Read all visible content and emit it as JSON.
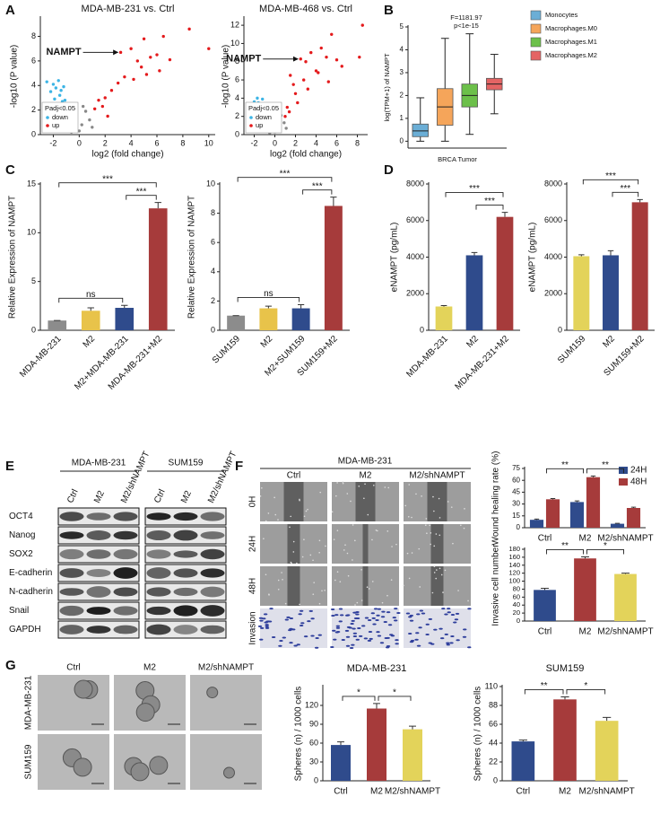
{
  "panel_labels": [
    "A",
    "B",
    "C",
    "D",
    "E",
    "F",
    "G"
  ],
  "chart_data": [
    {
      "type": "scatter",
      "title": "MDA-MB-231 vs. Ctrl",
      "xlabel": "log2 (fold change)",
      "ylabel": "-log10 (P value)",
      "xlim": [
        -3,
        10.5
      ],
      "xticks": [
        -2,
        0,
        2,
        4,
        6,
        8,
        10
      ],
      "ylim": [
        0,
        9.5
      ],
      "yticks": [
        0,
        2,
        4,
        6,
        8
      ],
      "legend_title": "Padj<0.05",
      "series": [
        {
          "name": "down",
          "color": "#3cb4e5",
          "x": [
            -2.2,
            -2,
            -1.8,
            -1.6,
            -1.4,
            -1.2,
            -1.9,
            -1.5,
            -1.1,
            -2.5,
            -1.7,
            -1.3
          ],
          "values": [
            3.5,
            4.1,
            3.8,
            4.4,
            3.6,
            3.9,
            2.9,
            3.2,
            2.8,
            4.3,
            2.5,
            2.7
          ]
        },
        {
          "name": "up",
          "color": "#e41a1c",
          "x": [
            3.2,
            4,
            4.5,
            5,
            5.5,
            6,
            6.5,
            7,
            8.5,
            10,
            3,
            3.5,
            4.2,
            2.5,
            2,
            1.5,
            1.8,
            1.2,
            2.2,
            5.2,
            6.2,
            4.8
          ],
          "values": [
            6.7,
            7,
            6,
            7.8,
            6.3,
            6.5,
            8,
            6.1,
            8.6,
            7,
            4.2,
            4.7,
            4.5,
            3.6,
            3,
            2.8,
            2.3,
            2.1,
            1.5,
            4.9,
            5.2,
            5.5
          ]
        },
        {
          "color": "#888888",
          "x": [
            -0.8,
            -0.5,
            -0.3,
            0,
            0.2,
            0.5,
            0.8,
            -0.6,
            0.3,
            1
          ],
          "values": [
            0.5,
            1,
            1.5,
            0.3,
            0.8,
            1.9,
            1.2,
            0.2,
            2.3,
            0.6
          ]
        }
      ],
      "annotations": [
        {
          "text": "NAMPT",
          "x": 3.2,
          "y": 6.7
        }
      ]
    },
    {
      "type": "scatter",
      "title": "MDA-MB-468 vs. Ctrl",
      "xlabel": "log2 (fold change)",
      "ylabel": "-log10 (P value)",
      "xlim": [
        -3,
        9
      ],
      "xticks": [
        -2,
        0,
        2,
        4,
        6,
        8
      ],
      "ylim": [
        0,
        12.8
      ],
      "yticks": [
        0,
        2,
        4,
        6,
        8,
        10,
        12
      ],
      "legend_title": "Padj<0.05",
      "series": [
        {
          "name": "down",
          "color": "#3cb4e5",
          "x": [
            -2.3,
            -2,
            -1.8,
            -1.6,
            -1.4,
            -1.2,
            -1.9,
            -1.5,
            -1.1,
            -1.7
          ],
          "values": [
            3.2,
            3.6,
            3,
            3.5,
            2.8,
            3.9,
            2.5,
            2.2,
            2.7,
            4
          ]
        },
        {
          "name": "up",
          "color": "#e41a1c",
          "x": [
            2.5,
            3,
            3.5,
            4,
            4.5,
            5,
            5.5,
            6,
            6.5,
            8.5,
            8.2,
            1.5,
            1.8,
            2,
            1.2,
            2.8,
            3.2,
            4.2,
            5.2,
            1,
            1.4,
            2.2
          ],
          "values": [
            8.3,
            8,
            9,
            7,
            9.5,
            8.5,
            11,
            8.2,
            7.5,
            12,
            8.5,
            6.5,
            5.5,
            4.5,
            3,
            6,
            5,
            6.8,
            5.8,
            2,
            2.5,
            3.5
          ]
        },
        {
          "color": "#888888",
          "x": [
            -0.7,
            -0.4,
            -0.2,
            0,
            0.3,
            0.6,
            0.9,
            -0.5,
            0.4,
            1.1
          ],
          "values": [
            0.6,
            1.1,
            1.6,
            0.3,
            0.9,
            2.1,
            1.3,
            0.2,
            2.6,
            0.7
          ]
        }
      ],
      "annotations": [
        {
          "text": "NAMPT",
          "x": 2.5,
          "y": 8.3
        }
      ]
    },
    {
      "type": "box",
      "ylabel": "log(TPM+1) of NAMPT",
      "xlabel": "BRCA Tumor",
      "annotations": [
        "F=1181.97",
        "p<1e-15"
      ],
      "ylim": [
        -0.3,
        5
      ],
      "yticks": [
        0,
        1,
        2,
        3,
        4,
        5
      ],
      "series": [
        {
          "name": "Monocytes",
          "color": "#6baed6",
          "whisker_low": 0,
          "q1": 0.2,
          "median": 0.45,
          "q3": 0.75,
          "whisker_high": 1.9
        },
        {
          "name": "Macrophages.M0",
          "color": "#f5a55a",
          "whisker_low": 0,
          "q1": 0.7,
          "median": 1.5,
          "q3": 2.3,
          "whisker_high": 4.5
        },
        {
          "name": "Macrophages.M1",
          "color": "#6cc04a",
          "whisker_low": 0.3,
          "q1": 1.5,
          "median": 2.0,
          "q3": 2.5,
          "whisker_high": 4.7
        },
        {
          "name": "Macrophages.M2",
          "color": "#e46464",
          "whisker_low": 1.2,
          "q1": 2.25,
          "median": 2.5,
          "q3": 2.75,
          "whisker_high": 3.8
        }
      ]
    },
    {
      "type": "bar",
      "ylabel": "Relative Expression of NAMPT",
      "categories": [
        "MDA-MB-231",
        "M2",
        "M2+MDA-MB-231",
        "MDA-MB-231+M2"
      ],
      "values": [
        1,
        2.0,
        2.3,
        12.5
      ],
      "errors": [
        0,
        0.3,
        0.25,
        0.6
      ],
      "colors": [
        "#8c8c8c",
        "#e8c34a",
        "#2f4b8c",
        "#a63b3b"
      ],
      "ylim": [
        0,
        15
      ],
      "yticks": [
        0,
        5,
        10,
        15
      ],
      "brackets": [
        {
          "from": 0,
          "to": 2,
          "label": "ns"
        },
        {
          "from": 2,
          "to": 3,
          "label": "***"
        },
        {
          "from": 0,
          "to": 3,
          "label": "***"
        }
      ]
    },
    {
      "type": "bar",
      "ylabel": "Relative Expression of NAMPT",
      "categories": [
        "SUM159",
        "M2",
        "M2+SUM159",
        "SUM159+M2"
      ],
      "values": [
        1,
        1.5,
        1.5,
        8.5
      ],
      "errors": [
        0,
        0.15,
        0.25,
        0.6
      ],
      "colors": [
        "#8c8c8c",
        "#e8c34a",
        "#2f4b8c",
        "#a63b3b"
      ],
      "ylim": [
        0,
        10
      ],
      "yticks": [
        0,
        2,
        4,
        6,
        8,
        10
      ],
      "brackets": [
        {
          "from": 0,
          "to": 2,
          "label": "ns"
        },
        {
          "from": 2,
          "to": 3,
          "label": "***"
        },
        {
          "from": 0,
          "to": 3,
          "label": "***"
        }
      ]
    },
    {
      "type": "bar",
      "ylabel": "eNAMPT (pg/mL)",
      "categories": [
        "MDA-MB-231",
        "M2",
        "MDA-MB-231+M2"
      ],
      "values": [
        1300,
        4100,
        6200
      ],
      "errors": [
        50,
        150,
        250
      ],
      "colors": [
        "#e3d35a",
        "#2f4b8c",
        "#a63b3b"
      ],
      "ylim": [
        0,
        8000
      ],
      "yticks": [
        0,
        2000,
        4000,
        6000,
        8000
      ],
      "brackets": [
        {
          "from": 1,
          "to": 2,
          "label": "***"
        },
        {
          "from": 0,
          "to": 2,
          "label": "***"
        }
      ]
    },
    {
      "type": "bar",
      "ylabel": "eNAMPT (pg/mL)",
      "categories": [
        "SUM159",
        "M2",
        "SUM159+M2"
      ],
      "values": [
        4050,
        4100,
        7000
      ],
      "errors": [
        80,
        250,
        150
      ],
      "colors": [
        "#e3d35a",
        "#2f4b8c",
        "#a63b3b"
      ],
      "ylim": [
        0,
        8000
      ],
      "yticks": [
        0,
        2000,
        4000,
        6000,
        8000
      ],
      "brackets": [
        {
          "from": 1,
          "to": 2,
          "label": "***"
        },
        {
          "from": 0,
          "to": 2,
          "label": "***"
        }
      ]
    },
    {
      "type": "grouped_bar",
      "ylabel": "Wound healing rate (%)",
      "categories": [
        "Ctrl",
        "M2",
        "M2/shNAMPT"
      ],
      "series": [
        {
          "name": "24H",
          "color": "#2f4b8c",
          "values": [
            10,
            32.5,
            5
          ],
          "errors": [
            1,
            1.5,
            0.6
          ]
        },
        {
          "name": "48H",
          "color": "#a63b3b",
          "values": [
            36,
            64,
            25
          ],
          "errors": [
            1,
            1.5,
            1
          ]
        }
      ],
      "ylim": [
        0,
        75
      ],
      "yticks": [
        0,
        15,
        30,
        45,
        60,
        75
      ],
      "brackets": [
        {
          "from": 0,
          "to": 1,
          "label": "**"
        },
        {
          "from": 1,
          "to": 2,
          "label": "**"
        }
      ]
    },
    {
      "type": "bar",
      "ylabel": "Invasive cell number",
      "categories": [
        "Ctrl",
        "M2",
        "M2/shNAMPT"
      ],
      "values": [
        78,
        157,
        118
      ],
      "errors": [
        4,
        4,
        2
      ],
      "colors": [
        "#2f4b8c",
        "#a63b3b",
        "#e3d35a"
      ],
      "ylim": [
        0,
        180
      ],
      "yticks": [
        0,
        20,
        40,
        60,
        80,
        100,
        120,
        140,
        160,
        180
      ],
      "brackets": [
        {
          "from": 0,
          "to": 1,
          "label": "**"
        },
        {
          "from": 1,
          "to": 2,
          "label": "*"
        }
      ]
    },
    {
      "type": "bar",
      "title": "MDA-MB-231",
      "ylabel": "Spheres (n) / 1000 cells",
      "categories": [
        "Ctrl",
        "M2",
        "M2/shNAMPT"
      ],
      "values": [
        57,
        115,
        82
      ],
      "errors": [
        5,
        8,
        5
      ],
      "colors": [
        "#2f4b8c",
        "#a63b3b",
        "#e3d35a"
      ],
      "ylim": [
        0,
        150
      ],
      "yticks": [
        0,
        30,
        60,
        90,
        120
      ],
      "brackets": [
        {
          "from": 0,
          "to": 1,
          "label": "*"
        },
        {
          "from": 1,
          "to": 2,
          "label": "*"
        }
      ]
    },
    {
      "type": "bar",
      "title": "SUM159",
      "ylabel": "Spheres (n) / 1000 cells",
      "categories": [
        "Ctrl",
        "M2",
        "M2/shNAMPT"
      ],
      "values": [
        46,
        95,
        70
      ],
      "errors": [
        1.5,
        3,
        4
      ],
      "colors": [
        "#2f4b8c",
        "#a63b3b",
        "#e3d35a"
      ],
      "ylim": [
        0,
        110
      ],
      "yticks": [
        0,
        22,
        44,
        66,
        88,
        110
      ],
      "brackets": [
        {
          "from": 0,
          "to": 1,
          "label": "**"
        },
        {
          "from": 1,
          "to": 2,
          "label": "*"
        }
      ]
    }
  ],
  "blot": {
    "groups": [
      "MDA-MB-231",
      "SUM159"
    ],
    "lanes": [
      "Ctrl",
      "M2",
      "M2/shNAMPT"
    ],
    "proteins": [
      "OCT4",
      "Nanog",
      "SOX2",
      "E-cadherin",
      "N-cadherin",
      "Snail",
      "GAPDH"
    ]
  },
  "wound": {
    "title": "MDA-MB-231",
    "columns": [
      "Ctrl",
      "M2",
      "M2/shNAMPT"
    ],
    "rows": [
      "0H",
      "24H",
      "48H",
      "Invasion"
    ]
  },
  "spheres": {
    "columns": [
      "Ctrl",
      "M2",
      "M2/shNAMPT"
    ],
    "rows": [
      "MDA-MB-231",
      "SUM159"
    ]
  }
}
